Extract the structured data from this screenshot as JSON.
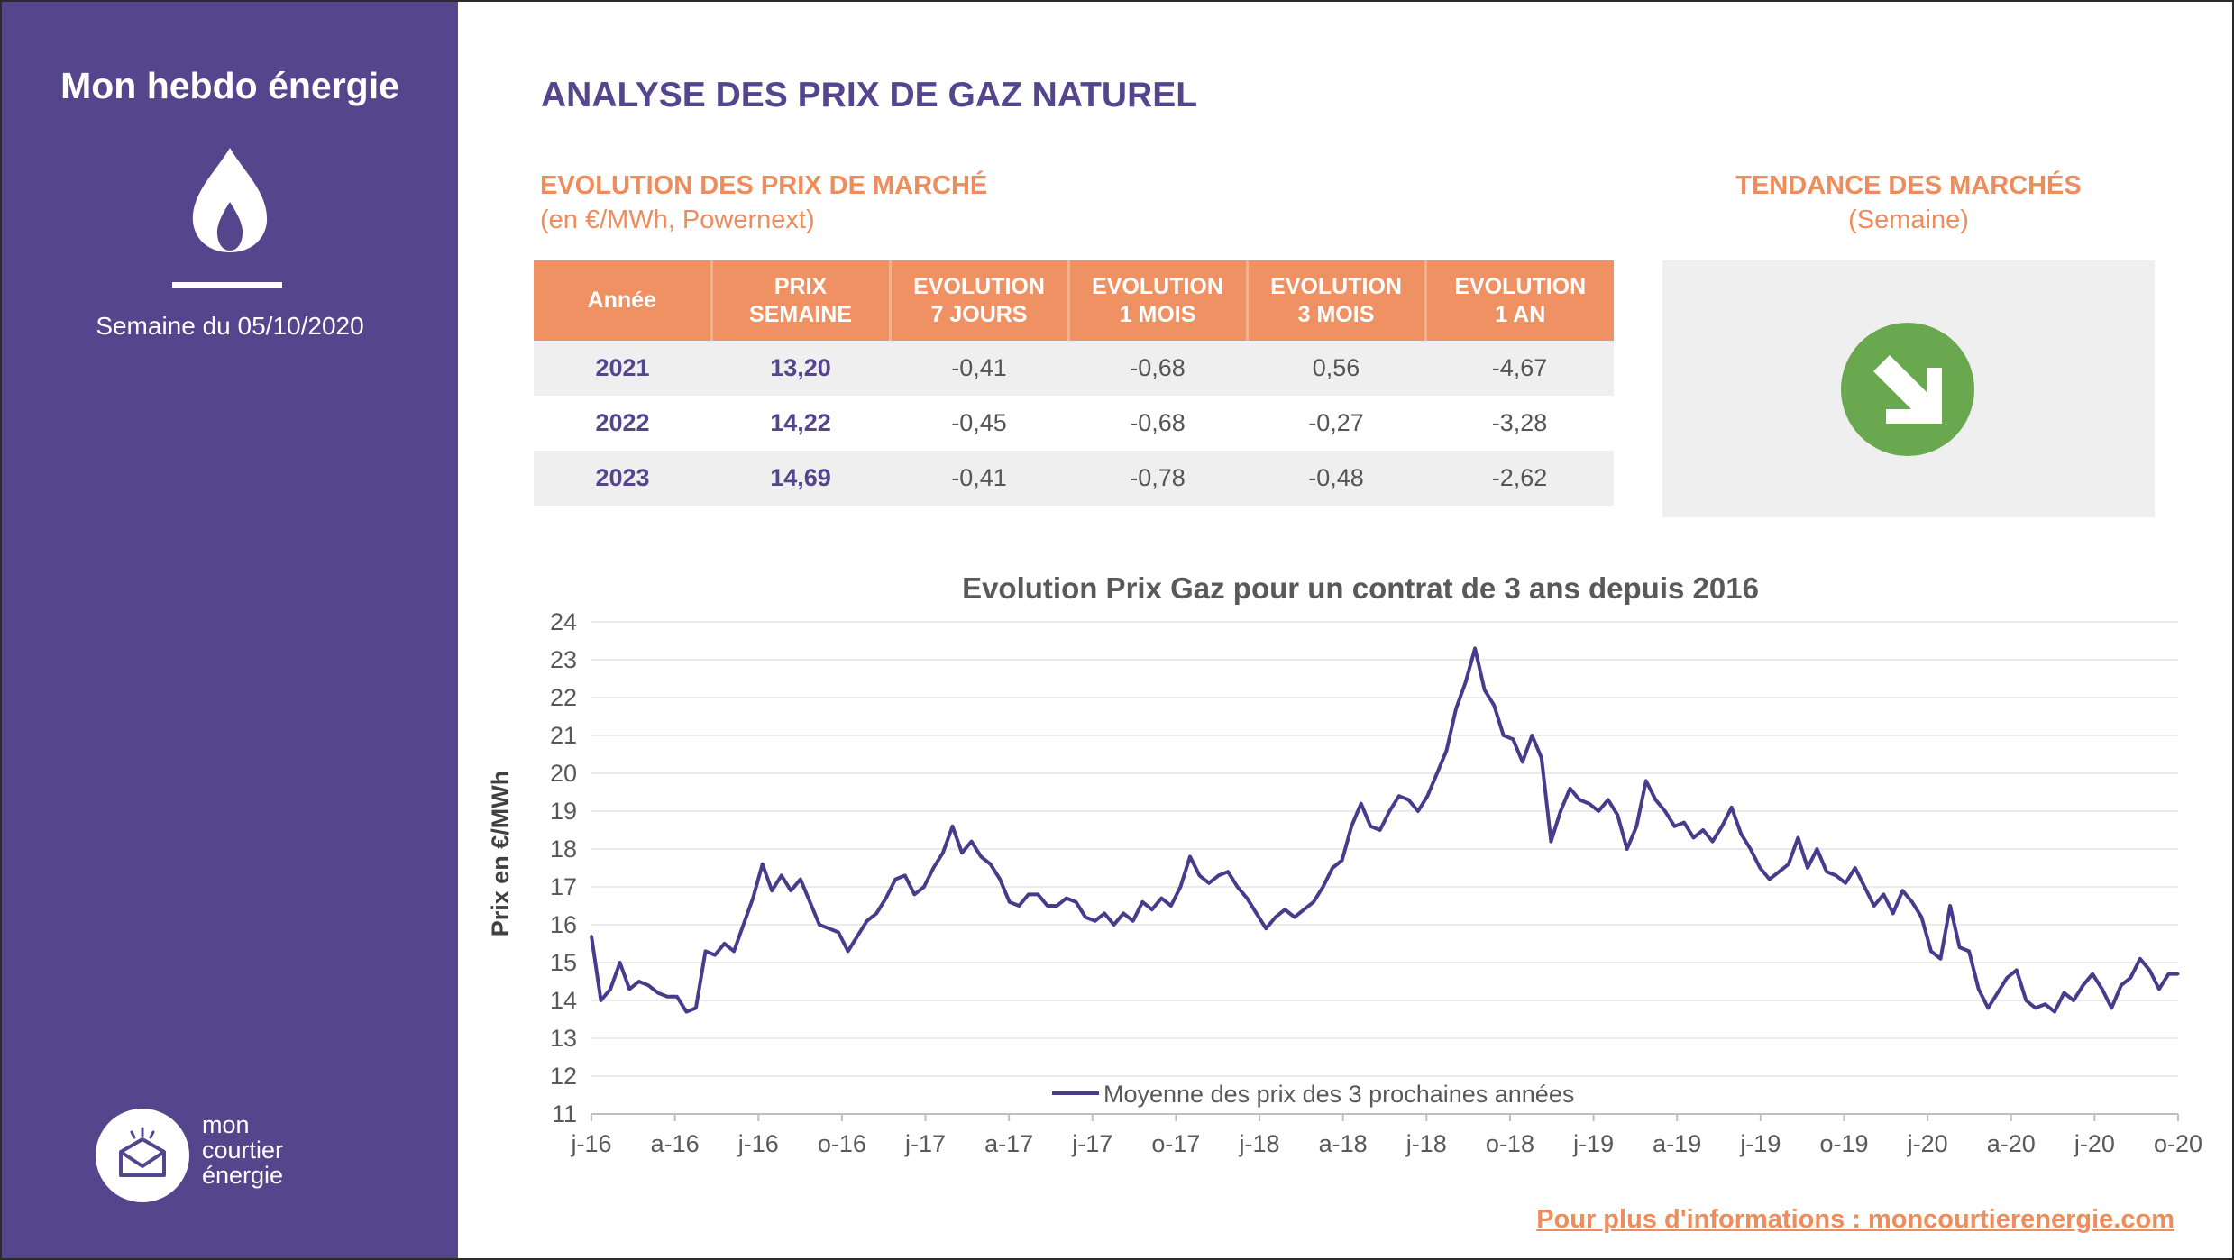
{
  "sidebar": {
    "title": "Mon hebdo énergie",
    "week_label": "Semaine du 05/10/2020",
    "logo_lines": [
      "mon",
      "courtier",
      "énergie"
    ]
  },
  "header": {
    "title": "ANALYSE DES PRIX DE GAZ NATUREL"
  },
  "market": {
    "title": "EVOLUTION DES PRIX DE MARCHÉ",
    "subtitle": "(en €/MWh, Powernext)"
  },
  "trend": {
    "title": "TENDANCE DES MARCHÉS",
    "subtitle": "(Semaine)",
    "icon": "arrow-down-right-icon",
    "color": "#6aa84f"
  },
  "table": {
    "headers": [
      [
        "Année"
      ],
      [
        "PRIX",
        "SEMAINE"
      ],
      [
        "EVOLUTION",
        "7 JOURS"
      ],
      [
        "EVOLUTION",
        "1 MOIS"
      ],
      [
        "EVOLUTION",
        "3 MOIS"
      ],
      [
        "EVOLUTION",
        "1 AN"
      ]
    ],
    "rows": [
      [
        "2021",
        "13,20",
        "-0,41",
        "-0,68",
        "0,56",
        "-4,67"
      ],
      [
        "2022",
        "14,22",
        "-0,45",
        "-0,68",
        "-0,27",
        "-3,28"
      ],
      [
        "2023",
        "14,69",
        "-0,41",
        "-0,78",
        "-0,48",
        "-2,62"
      ]
    ]
  },
  "footer": {
    "link_text": "Pour plus d'informations : moncourtierenergie.com"
  },
  "colors": {
    "purple": "#54458c",
    "orange": "#ef8c5c",
    "green": "#6aa84f"
  },
  "chart_data": {
    "type": "line",
    "title": "Evolution Prix Gaz pour un contrat de 3 ans depuis 2016",
    "ylabel": "Prix en €/MWh",
    "xlabel": "",
    "ylim": [
      11,
      24
    ],
    "yticks": [
      11,
      12,
      13,
      14,
      15,
      16,
      17,
      18,
      19,
      20,
      21,
      22,
      23,
      24
    ],
    "xtick_labels": [
      "j-16",
      "a-16",
      "j-16",
      "o-16",
      "j-17",
      "a-17",
      "j-17",
      "o-17",
      "j-18",
      "a-18",
      "j-18",
      "o-18",
      "j-19",
      "a-19",
      "j-19",
      "o-19",
      "j-20",
      "a-20",
      "j-20",
      "o-20"
    ],
    "grid": true,
    "legend_position": "bottom-center",
    "series": [
      {
        "name": "Moyenne des prix des 3 prochaines années",
        "color": "#473c8b",
        "x_range_months": [
          "2016-01",
          "2020-10"
        ],
        "values": [
          15.7,
          14.0,
          14.3,
          15.0,
          14.3,
          14.5,
          14.4,
          14.2,
          14.1,
          14.1,
          13.7,
          13.8,
          15.3,
          15.2,
          15.5,
          15.3,
          16.0,
          16.7,
          17.6,
          16.9,
          17.3,
          16.9,
          17.2,
          16.6,
          16.0,
          15.9,
          15.8,
          15.3,
          15.7,
          16.1,
          16.3,
          16.7,
          17.2,
          17.3,
          16.8,
          17.0,
          17.5,
          17.9,
          18.6,
          17.9,
          18.2,
          17.8,
          17.6,
          17.2,
          16.6,
          16.5,
          16.8,
          16.8,
          16.5,
          16.5,
          16.7,
          16.6,
          16.2,
          16.1,
          16.3,
          16.0,
          16.3,
          16.1,
          16.6,
          16.4,
          16.7,
          16.5,
          17.0,
          17.8,
          17.3,
          17.1,
          17.3,
          17.4,
          17.0,
          16.7,
          16.3,
          15.9,
          16.2,
          16.4,
          16.2,
          16.4,
          16.6,
          17.0,
          17.5,
          17.7,
          18.6,
          19.2,
          18.6,
          18.5,
          19.0,
          19.4,
          19.3,
          19.0,
          19.4,
          20.0,
          20.6,
          21.7,
          22.4,
          23.3,
          22.2,
          21.8,
          21.0,
          20.9,
          20.3,
          21.0,
          20.4,
          18.2,
          19.0,
          19.6,
          19.3,
          19.2,
          19.0,
          19.3,
          18.9,
          18.0,
          18.6,
          19.8,
          19.3,
          19.0,
          18.6,
          18.7,
          18.3,
          18.5,
          18.2,
          18.6,
          19.1,
          18.4,
          18.0,
          17.5,
          17.2,
          17.4,
          17.6,
          18.3,
          17.5,
          18.0,
          17.4,
          17.3,
          17.1,
          17.5,
          17.0,
          16.5,
          16.8,
          16.3,
          16.9,
          16.6,
          16.2,
          15.3,
          15.1,
          16.5,
          15.4,
          15.3,
          14.3,
          13.8,
          14.2,
          14.6,
          14.8,
          14.0,
          13.8,
          13.9,
          13.7,
          14.2,
          14.0,
          14.4,
          14.7,
          14.3,
          13.8,
          14.4,
          14.6,
          15.1,
          14.8,
          14.3,
          14.7,
          14.7
        ]
      }
    ]
  }
}
